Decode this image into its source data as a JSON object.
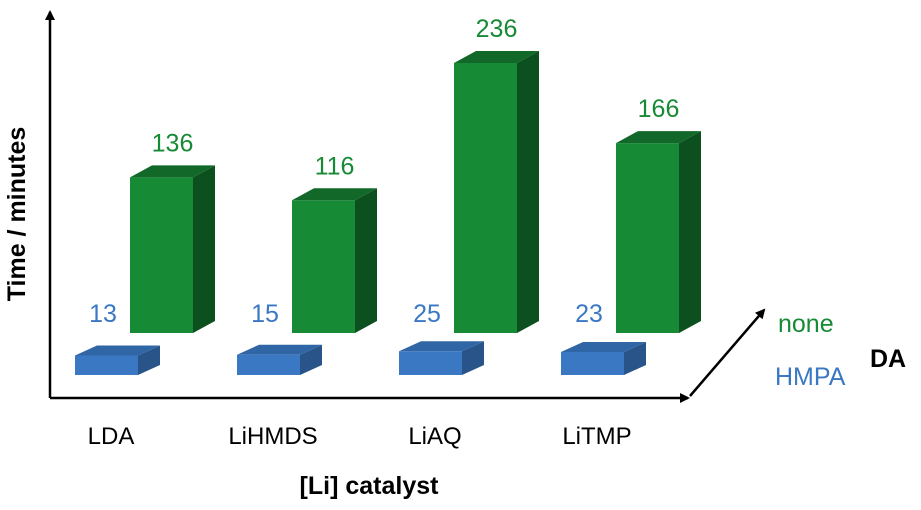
{
  "chart_data": {
    "type": "bar",
    "subtype": "3d-bar",
    "categories": [
      "LDA",
      "LiHMDS",
      "LiAQ",
      "LiTMP"
    ],
    "series": [
      {
        "name": "HMPA",
        "values": [
          13,
          15,
          25,
          23
        ],
        "color": "#3a78c3"
      },
      {
        "name": "none",
        "values": [
          136,
          116,
          236,
          166
        ],
        "color": "#178a36"
      }
    ],
    "xlabel": "[Li] catalyst",
    "ylabel": "Time / minutes",
    "zlabel": "DA",
    "ylim": [
      0,
      250
    ],
    "grid": false,
    "value_labels": true,
    "legend": "none"
  }
}
